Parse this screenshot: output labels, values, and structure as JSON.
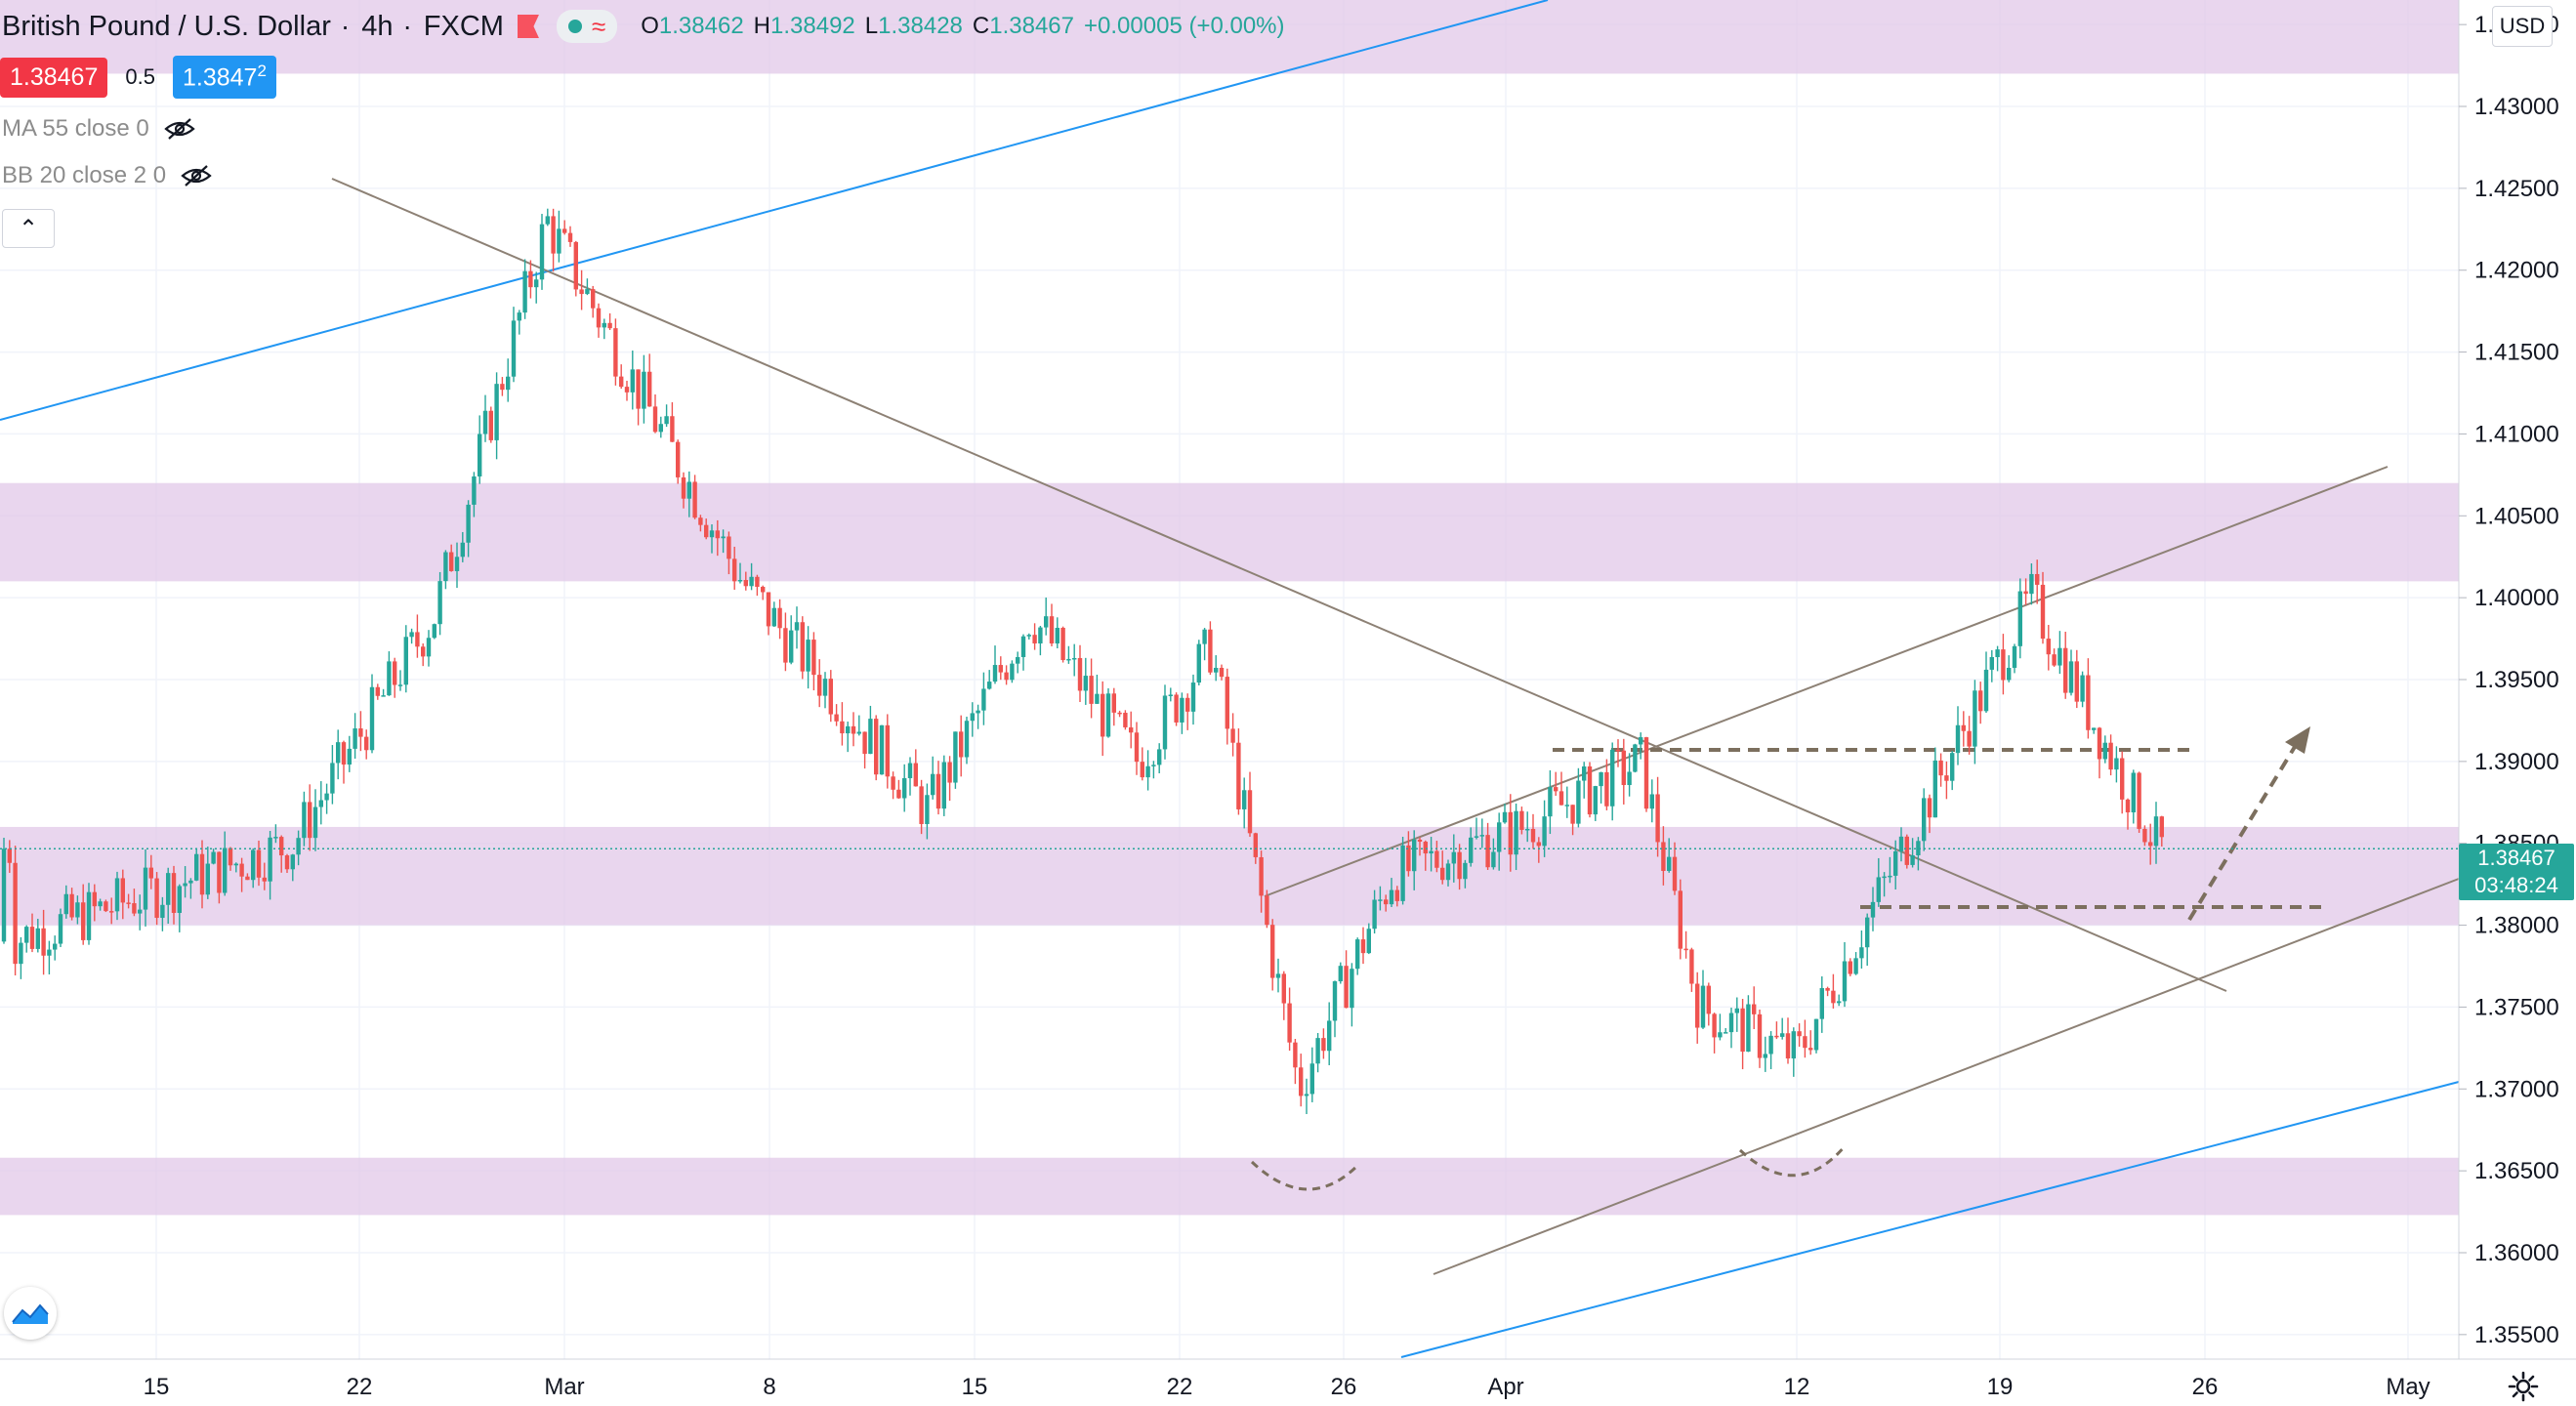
{
  "header": {
    "symbol": "British Pound / U.S. Dollar",
    "interval": "4h",
    "source": "FXCM",
    "ohlc": {
      "open_label": "O",
      "open": "1.38462",
      "high_label": "H",
      "high": "1.38492",
      "low_label": "L",
      "low": "1.38428",
      "close_label": "C",
      "close": "1.38467",
      "change": "+0.00005 (+0.00%)"
    },
    "sell_price": "1.38467",
    "spread": "0.5",
    "buy_price_main": "1.3847",
    "buy_price_sup": "2"
  },
  "indicators": [
    {
      "label": "MA 55 close 0",
      "icon": "eye-off-icon"
    },
    {
      "label": "BB 20 close 2 0",
      "icon": "eye-off-icon"
    }
  ],
  "currency": "USD",
  "last_price": {
    "value": "1.38467",
    "countdown": "03:48:24",
    "color": "#26a69a"
  },
  "colors": {
    "up": "#26a69a",
    "down": "#ef5350",
    "zone": "#e1c6e8",
    "trendline": "#8d8175",
    "channel": "#2196f3",
    "dashed": "#7c6f5e"
  },
  "chart_data": {
    "type": "candlestick",
    "symbol": "GBPUSD",
    "interval": "4h",
    "ylim": [
      1.3535,
      1.4365
    ],
    "y_ticks": [
      "1.43500",
      "1.43000",
      "1.42500",
      "1.42000",
      "1.41500",
      "1.41000",
      "1.40500",
      "1.40000",
      "1.39500",
      "1.39000",
      "1.38500",
      "1.38000",
      "1.37500",
      "1.37000",
      "1.36500",
      "1.36000",
      "1.35500"
    ],
    "x_labels": [
      "15",
      "22",
      "Mar",
      "8",
      "15",
      "22",
      "26",
      "Apr",
      "12",
      "19",
      "26",
      "May"
    ],
    "price_path": [
      [
        "15",
        1.38
      ],
      [
        "22",
        1.4
      ],
      [
        "22",
        1.424
      ],
      [
        "Mar",
        1.401
      ],
      [
        "8",
        1.383
      ],
      [
        "15",
        1.399
      ],
      [
        "15",
        1.388
      ],
      [
        "22",
        1.397
      ],
      [
        "26",
        1.369
      ],
      [
        "Apr",
        1.384
      ],
      [
        "Apr",
        1.391
      ],
      [
        "12",
        1.372
      ],
      [
        "19",
        1.4
      ],
      [
        "26",
        1.3847
      ]
    ],
    "zones": [
      {
        "from": 1.432,
        "to": 1.4365
      },
      {
        "from": 1.401,
        "to": 1.407
      },
      {
        "from": 1.38,
        "to": 1.386
      },
      {
        "from": 1.3623,
        "to": 1.3658
      }
    ],
    "key_levels": [
      1.3915,
      1.382
    ],
    "last": 1.38467,
    "annotations": [
      "descending trendline",
      "ascending wedge",
      "blue parallel channel",
      "double bottom arcs",
      "projected breakout arrow"
    ]
  }
}
